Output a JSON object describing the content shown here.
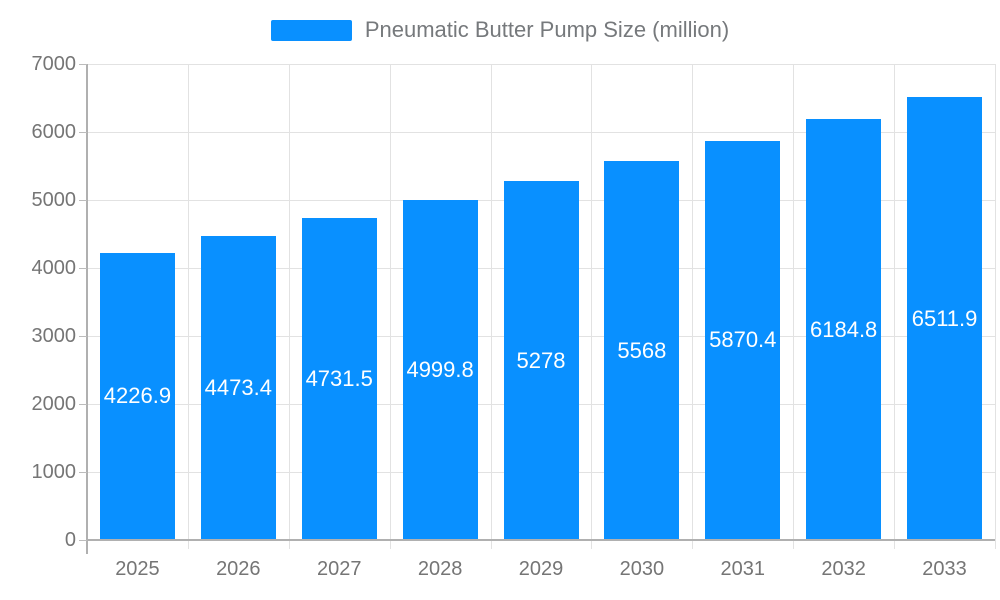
{
  "chart_data": {
    "type": "bar",
    "legend": "Pneumatic Butter Pump Size (million)",
    "categories": [
      "2025",
      "2026",
      "2027",
      "2028",
      "2029",
      "2030",
      "2031",
      "2032",
      "2033"
    ],
    "values": [
      4226.9,
      4473.4,
      4731.5,
      4999.8,
      5278,
      5568,
      5870.4,
      6184.8,
      6511.9
    ],
    "title": "",
    "xlabel": "",
    "ylabel": "",
    "ylim": [
      0,
      7000
    ],
    "ytick_step": 1000,
    "ytick_labels": [
      "0",
      "1000",
      "2000",
      "3000",
      "4000",
      "5000",
      "6000",
      "7000"
    ],
    "grid": true,
    "legend_position": "top-center",
    "value_label_position": "inside-center"
  },
  "colors": {
    "bar": "#0990ff",
    "grid_line": "#e2e2e2",
    "axis_line": "#b0b0b0",
    "tick_line": "#bcbcbc",
    "axis_label_text": "#757575",
    "legend_text": "#76797c",
    "value_label_text": "#ffffff",
    "background": "#ffffff"
  }
}
